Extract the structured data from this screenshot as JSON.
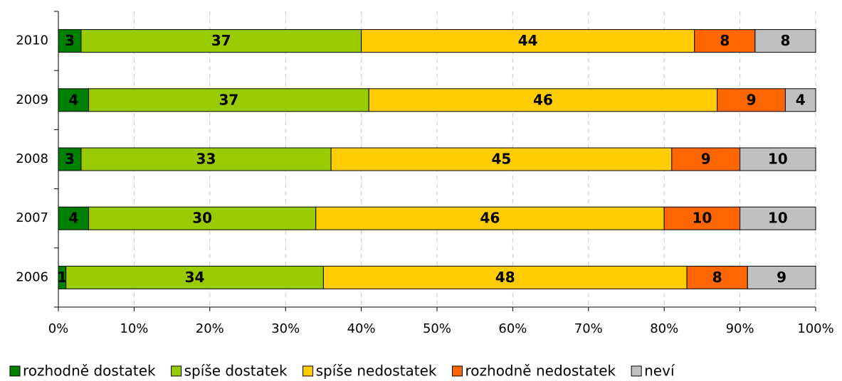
{
  "chart_data": {
    "type": "stacked_barh",
    "categories": [
      "2010",
      "2009",
      "2008",
      "2007",
      "2006"
    ],
    "series": [
      {
        "name": "rozhodně dostatek",
        "color": "#008000",
        "values": [
          3,
          4,
          3,
          4,
          1
        ]
      },
      {
        "name": "spíše dostatek",
        "color": "#99cc00",
        "values": [
          37,
          37,
          33,
          30,
          34
        ]
      },
      {
        "name": "spíše nedostatek",
        "color": "#ffcc00",
        "values": [
          44,
          46,
          45,
          46,
          48
        ]
      },
      {
        "name": "rozhodně nedostatek",
        "color": "#ff6600",
        "values": [
          8,
          9,
          9,
          10,
          8
        ]
      },
      {
        "name": "neví",
        "color": "#c0c0c0",
        "values": [
          8,
          4,
          10,
          10,
          9
        ]
      }
    ],
    "xlim": [
      0,
      100
    ],
    "xticks": [
      {
        "value": 0,
        "label": "0%"
      },
      {
        "value": 10,
        "label": "10%"
      },
      {
        "value": 20,
        "label": "20%"
      },
      {
        "value": 30,
        "label": "30%"
      },
      {
        "value": 40,
        "label": "40%"
      },
      {
        "value": 50,
        "label": "50%"
      },
      {
        "value": 60,
        "label": "60%"
      },
      {
        "value": 70,
        "label": "70%"
      },
      {
        "value": 80,
        "label": "80%"
      },
      {
        "value": 90,
        "label": "90%"
      },
      {
        "value": 100,
        "label": "100%"
      }
    ],
    "grid": true,
    "legend": "bottom"
  }
}
